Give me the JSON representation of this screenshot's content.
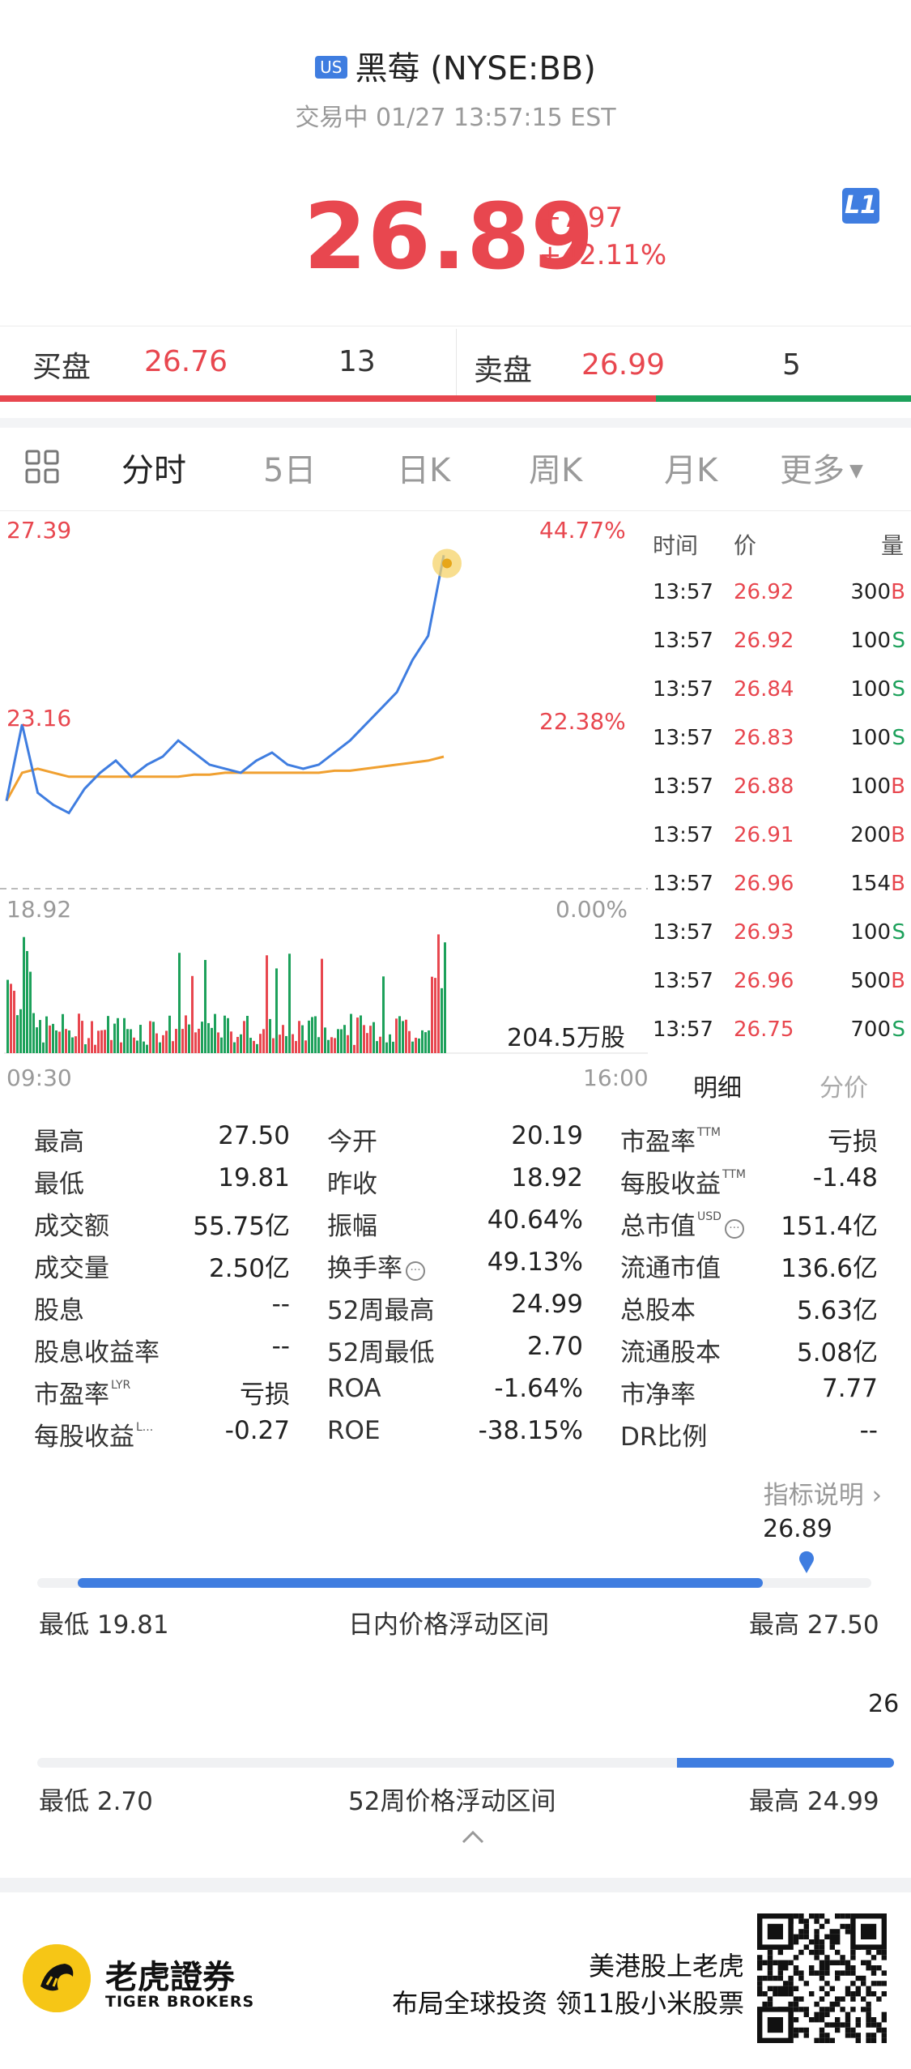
{
  "header": {
    "market_badge": "US",
    "title": "黑莓 (NYSE:BB)",
    "status": "交易中 01/27 13:57:15 EST",
    "level_badge": "L1"
  },
  "quote": {
    "price": "26.89",
    "change": "+7.97",
    "change_pct": "+42.11%"
  },
  "bidask": {
    "bid_label": "买盘",
    "bid_price": "26.76",
    "bid_qty": "13",
    "ask_label": "卖盘",
    "ask_price": "26.99",
    "ask_qty": "5",
    "bid_ratio": 0.72
  },
  "tabs": [
    {
      "label": "分时",
      "active": true
    },
    {
      "label": "5日"
    },
    {
      "label": "日K"
    },
    {
      "label": "周K"
    },
    {
      "label": "月K"
    },
    {
      "label": "更多"
    }
  ],
  "chart": {
    "y_high": "27.39",
    "y_mid": "23.16",
    "y_low": "18.92",
    "pct_high": "44.77%",
    "pct_mid": "22.38%",
    "pct_low": "0.00%",
    "volume_label": "204.5万股",
    "x_start": "09:30",
    "x_end": "16:00",
    "colors": {
      "price": "#3f7de0",
      "avg": "#f0a030",
      "up": "#e8474f",
      "down": "#1da15b"
    }
  },
  "chart_data": {
    "type": "line",
    "x_range": [
      "09:30",
      "16:00"
    ],
    "ylim": [
      18.92,
      27.39
    ],
    "series": [
      {
        "values": [
          21.1,
          23.0,
          21.3,
          21.0,
          20.8,
          21.4,
          21.8,
          22.1,
          21.7,
          22.0,
          22.2,
          22.6,
          22.3,
          22.0,
          21.9,
          21.8,
          22.1,
          22.3,
          22.0,
          21.9,
          22.0,
          22.3,
          22.6,
          23.0,
          23.4,
          23.8,
          24.6,
          25.2,
          27.2
        ]
      },
      {
        "values": [
          21.1,
          21.8,
          21.9,
          21.8,
          21.7,
          21.7,
          21.7,
          21.7,
          21.7,
          21.7,
          21.7,
          21.7,
          21.75,
          21.75,
          21.8,
          21.8,
          21.8,
          21.8,
          21.8,
          21.8,
          21.8,
          21.85,
          21.85,
          21.9,
          21.95,
          22.0,
          22.05,
          22.1,
          22.2
        ]
      }
    ]
  },
  "trades": {
    "headers": [
      "时间",
      "价",
      "量"
    ],
    "rows": [
      {
        "time": "13:57",
        "price": "26.92",
        "vol": "300",
        "side": "B"
      },
      {
        "time": "13:57",
        "price": "26.92",
        "vol": "100",
        "side": "S"
      },
      {
        "time": "13:57",
        "price": "26.84",
        "vol": "100",
        "side": "S"
      },
      {
        "time": "13:57",
        "price": "26.83",
        "vol": "100",
        "side": "S"
      },
      {
        "time": "13:57",
        "price": "26.88",
        "vol": "100",
        "side": "B"
      },
      {
        "time": "13:57",
        "price": "26.91",
        "vol": "200",
        "side": "B"
      },
      {
        "time": "13:57",
        "price": "26.96",
        "vol": "154",
        "side": "B"
      },
      {
        "time": "13:57",
        "price": "26.93",
        "vol": "100",
        "side": "S"
      },
      {
        "time": "13:57",
        "price": "26.96",
        "vol": "500",
        "side": "B"
      },
      {
        "time": "13:57",
        "price": "26.75",
        "vol": "700",
        "side": "S"
      }
    ],
    "tab_detail": "明细",
    "tab_price": "分价"
  },
  "stats": {
    "col1": [
      {
        "label": "最高",
        "value": "27.50"
      },
      {
        "label": "最低",
        "value": "19.81"
      },
      {
        "label": "成交额",
        "value": "55.75亿"
      },
      {
        "label": "成交量",
        "value": "2.50亿"
      },
      {
        "label": "股息",
        "value": "--"
      },
      {
        "label": "股息收益率",
        "value": "--"
      },
      {
        "label": "市盈率",
        "sup": "LYR",
        "value": "亏损"
      },
      {
        "label": "每股收益",
        "sup": "L...",
        "value": "-0.27"
      }
    ],
    "col2": [
      {
        "label": "今开",
        "value": "20.19"
      },
      {
        "label": "昨收",
        "value": "18.92"
      },
      {
        "label": "振幅",
        "value": "40.64%"
      },
      {
        "label": "换手率",
        "value": "49.13%"
      },
      {
        "label": "52周最高",
        "value": "24.99"
      },
      {
        "label": "52周最低",
        "value": "2.70"
      },
      {
        "label": "ROA",
        "value": "-1.64%"
      },
      {
        "label": "ROE",
        "value": "-38.15%"
      }
    ],
    "col3": [
      {
        "label": "市盈率",
        "sup": "TTM",
        "value": "亏损"
      },
      {
        "label": "每股收益",
        "sup": "TTM",
        "value": "-1.48"
      },
      {
        "label": "总市值",
        "sup": "USD",
        "value": "151.4亿"
      },
      {
        "label": "流通市值",
        "value": "136.6亿"
      },
      {
        "label": "总股本",
        "value": "5.63亿"
      },
      {
        "label": "流通股本",
        "value": "5.08亿"
      },
      {
        "label": "市净率",
        "value": "7.77"
      },
      {
        "label": "DR比例",
        "value": "--"
      }
    ],
    "indicator_link": "指标说明"
  },
  "ranges": {
    "day": {
      "current": "26.89",
      "low": "最低 19.81",
      "title": "日内价格浮动区间",
      "high": "最高 27.50",
      "position": 0.94
    },
    "week52": {
      "current": "26",
      "low": "最低 2.70",
      "title": "52周价格浮动区间",
      "high": "最高 24.99",
      "position": 1.0
    }
  },
  "footer": {
    "brand_cn": "老虎證券",
    "brand_en": "TIGER BROKERS",
    "slogan1": "美港股上老虎",
    "slogan2": "布局全球投资 领11股小米股票"
  }
}
